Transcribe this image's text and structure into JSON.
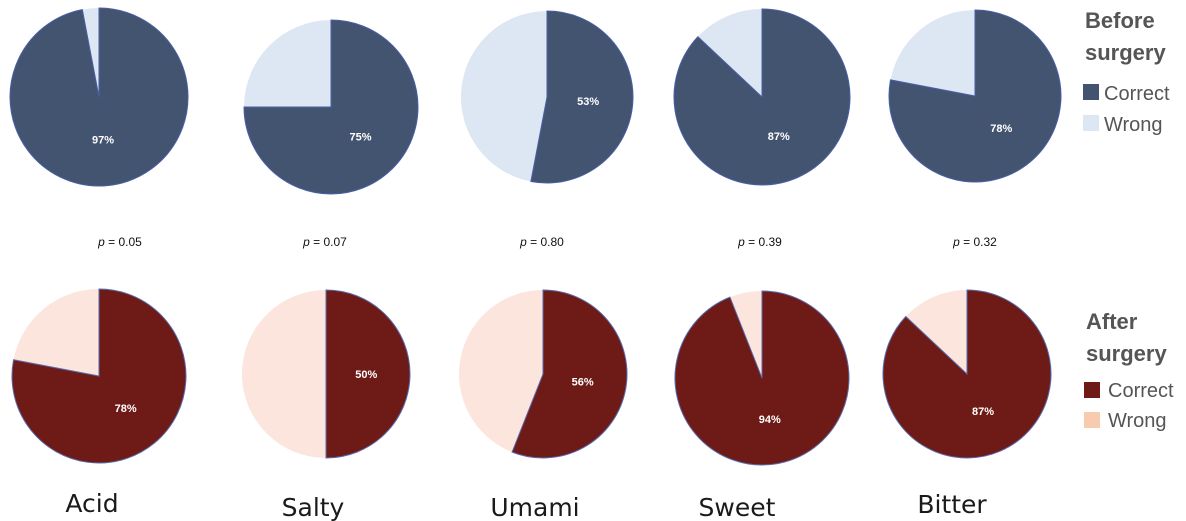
{
  "chart_data": {
    "type": "pie",
    "categories": [
      "Acid",
      "Salty",
      "Umami",
      "Sweet",
      "Bitter"
    ],
    "p_values": [
      "0.05",
      "0.07",
      "0.80",
      "0.39",
      "0.32"
    ],
    "p_label": "p",
    "groups": [
      {
        "name": "Before surgery",
        "title_lines": [
          "Before",
          "surgery"
        ],
        "legend": [
          "Correct",
          "Wrong"
        ],
        "colors": {
          "correct": "#435470",
          "wrong": "#dde7f3"
        },
        "correct_pct": [
          97,
          75,
          53,
          87,
          78
        ],
        "labels": [
          "97%",
          "75%",
          "53%",
          "87%",
          "78%"
        ]
      },
      {
        "name": "After surgery",
        "title_lines": [
          "After",
          "surgery"
        ],
        "legend": [
          "Correct",
          "Wrong"
        ],
        "colors": {
          "correct": "#6e1b17",
          "wrong": "#fbe5dc",
          "legend_wrong": "#f8cbb0"
        },
        "correct_pct": [
          78,
          50,
          56,
          94,
          87
        ],
        "labels": [
          "78%",
          "50%",
          "56%",
          "94%",
          "87%"
        ]
      }
    ]
  }
}
